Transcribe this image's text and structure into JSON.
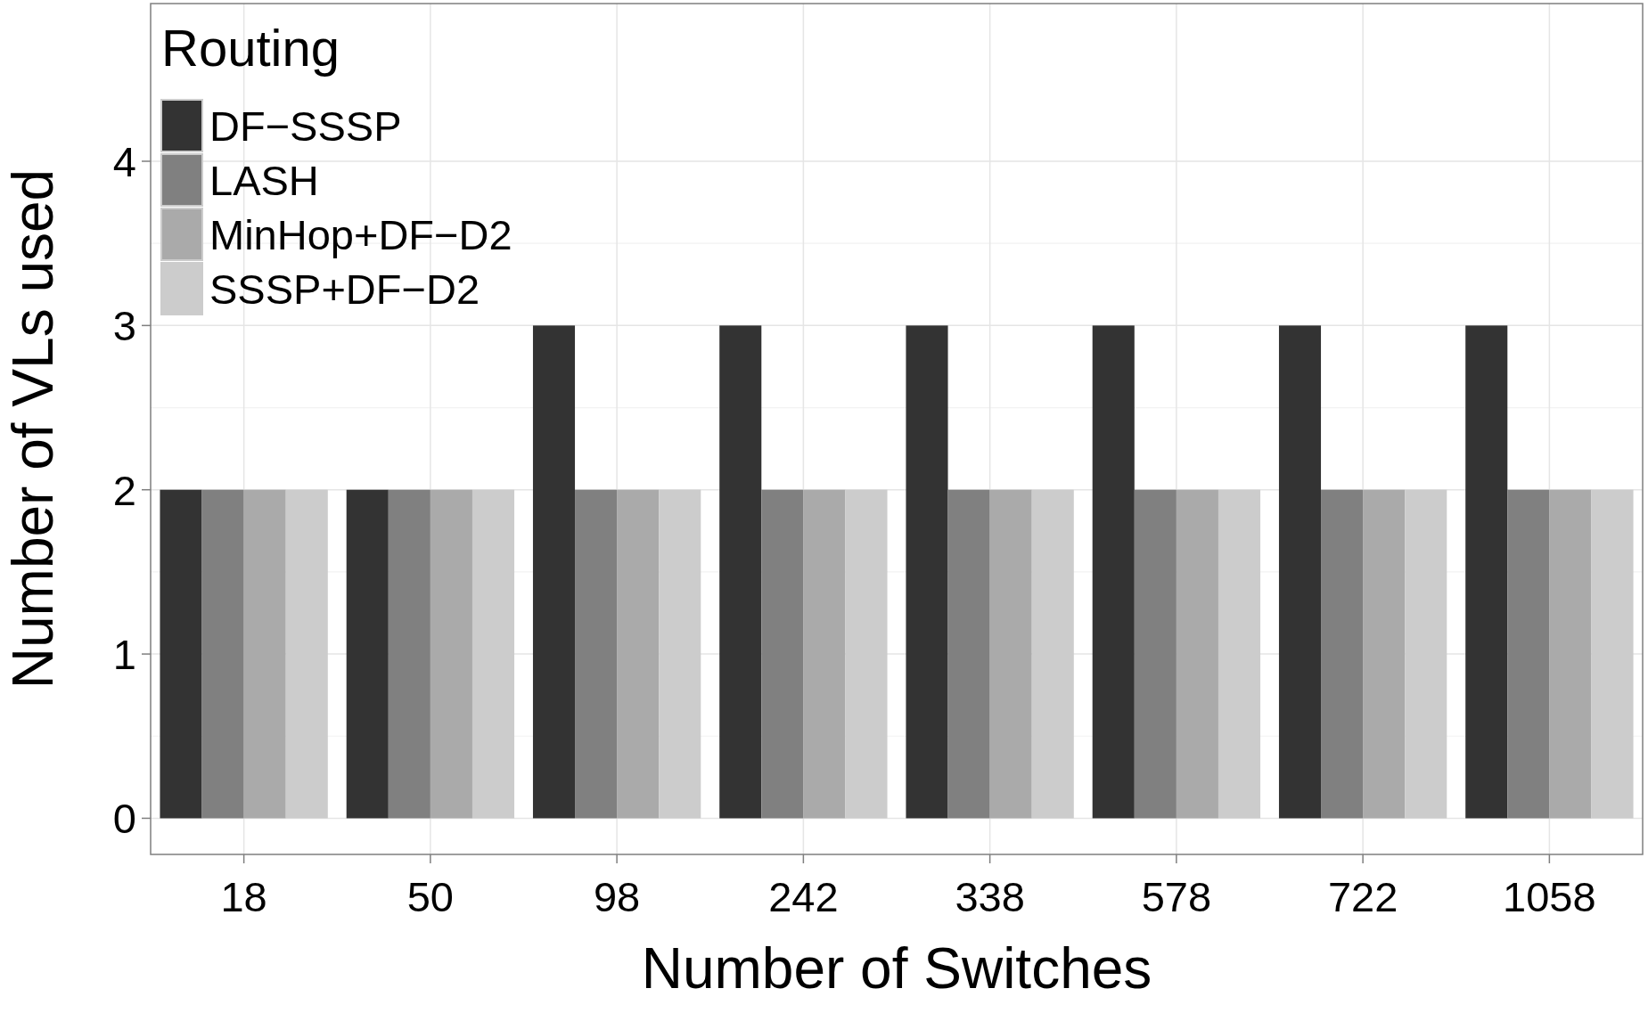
{
  "chart_data": {
    "type": "bar",
    "xlabel": "Number of Switches",
    "ylabel": "Number of VLs used",
    "legend_title": "Routing",
    "categories": [
      "18",
      "50",
      "98",
      "242",
      "338",
      "578",
      "722",
      "1058"
    ],
    "series": [
      {
        "name": "DF−SSSP",
        "color": "#333333",
        "values": [
          2,
          2,
          3,
          3,
          3,
          3,
          3,
          3
        ]
      },
      {
        "name": "LASH",
        "color": "#808080",
        "values": [
          2,
          2,
          2,
          2,
          2,
          2,
          2,
          2
        ]
      },
      {
        "name": "MinHop+DF−D2",
        "color": "#aaaaaa",
        "values": [
          2,
          2,
          2,
          2,
          2,
          2,
          2,
          2
        ]
      },
      {
        "name": "SSSP+DF−D2",
        "color": "#cccccc",
        "values": [
          2,
          2,
          2,
          2,
          2,
          2,
          2,
          2
        ]
      }
    ],
    "ylim": [
      -0.22,
      4.96
    ],
    "yticks": [
      0,
      1,
      2,
      3,
      4
    ],
    "grid": true,
    "legend": "top left"
  }
}
